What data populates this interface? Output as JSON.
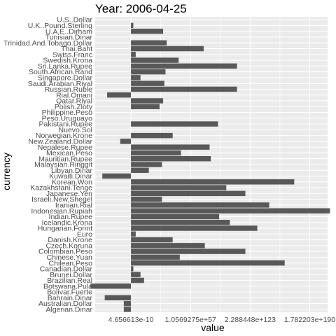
{
  "chart_data": {
    "type": "bar",
    "orientation": "horizontal",
    "title": "Year: 2006-04-25",
    "xlabel": "value",
    "ylabel": "currency",
    "grid": true,
    "xlim": [
      -3.0,
      16.5
    ],
    "x_ticks": [
      {
        "label": "4.656613e-10",
        "value": 0
      },
      {
        "label": "1.0569275e+57",
        "value": 5
      },
      {
        "label": "2.288448e+123",
        "value": 10
      },
      {
        "label": "1.782203e+190",
        "value": 15
      }
    ],
    "categories": [
      "U.S..Dollar",
      "U.K..Pound.Sterling",
      "U.A.E..Dirham",
      "Tunisian.Dinar",
      "Trinidad.And.Tobago.Dollar",
      "Thai.Baht",
      "Swiss.Franc",
      "Swedish.Krona",
      "Sri.Lanka.Rupee",
      "South.African.Rand",
      "Singapore.Dollar",
      "Saudi.Arabian.Riyal",
      "Russian.Ruble",
      "Rial.Omani",
      "Qatar.Riyal",
      "Polish.Zloty",
      "Philippine.Peso",
      "Peso.Uruguayo",
      "Pakistani.Rupee",
      "Nuevo.Sol",
      "Norwegian.Krone",
      "New.Zealand.Dollar",
      "Nepalese.Rupee",
      "Mexican.Peso",
      "Mauritian.Rupee",
      "Malaysian.Ringgit",
      "Libyan.Dinar",
      "Kuwaiti.Dinar",
      "Korean.Won",
      "Kazakhstani.Tenge",
      "Japanese.Yen",
      "Israeli.New.Shegel",
      "Iranian.Rial",
      "Indonesian.Rupiah",
      "Indian.Rupee",
      "Icelandic.Krona",
      "Hungarian.Forint",
      "Euro",
      "Danish.Krone",
      "Czech.Koruna",
      "Colombian.Peso",
      "Chinese.Yuan",
      "Chilean.Peso",
      "Canadian.Dollar",
      "Brunei.Dollar",
      "Brazilian.Real",
      "Botswana.Pula",
      "Bolivar.Fuerte",
      "Bahrain.Dinar",
      "Australian.Dollar",
      "Algerian.Dinar"
    ],
    "values": [
      0,
      0.2,
      2.7,
      0,
      3.0,
      6.1,
      0.4,
      4.0,
      8.9,
      2.9,
      0.8,
      2.8,
      8.9,
      -2.0,
      2.7,
      2.4,
      0,
      0,
      7.3,
      0,
      3.5,
      -0.9,
      6.6,
      4.2,
      6.7,
      2.6,
      1.5,
      -2.4,
      13.7,
      8.0,
      9.6,
      2.6,
      11.6,
      16.7,
      7.4,
      8.3,
      10.6,
      0.4,
      3.5,
      6.2,
      9.6,
      4.1,
      12.9,
      0.2,
      0.8,
      1.1,
      -3.4,
      0,
      -2.2,
      -0.6,
      -0.6
    ],
    "bar_color": "#595959",
    "panel_color": "#ebebeb",
    "grid_color": "#ffffff"
  }
}
